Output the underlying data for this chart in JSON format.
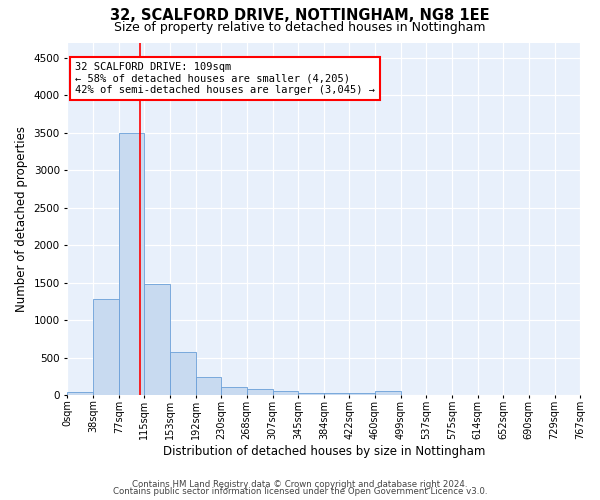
{
  "title1": "32, SCALFORD DRIVE, NOTTINGHAM, NG8 1EE",
  "title2": "Size of property relative to detached houses in Nottingham",
  "xlabel": "Distribution of detached houses by size in Nottingham",
  "ylabel": "Number of detached properties",
  "bin_edges": [
    0,
    38,
    77,
    115,
    153,
    192,
    230,
    268,
    307,
    345,
    384,
    422,
    460,
    499,
    537,
    575,
    614,
    652,
    690,
    729,
    767
  ],
  "bar_heights": [
    40,
    1280,
    3500,
    1480,
    580,
    245,
    115,
    80,
    55,
    35,
    25,
    30,
    55,
    0,
    0,
    0,
    0,
    0,
    0,
    0
  ],
  "bar_color": "#c8daf0",
  "bar_edge_color": "#6a9fd8",
  "property_size": 109,
  "vline_color": "red",
  "annotation_line1": "32 SCALFORD DRIVE: 109sqm",
  "annotation_line2": "← 58% of detached houses are smaller (4,205)",
  "annotation_line3": "42% of semi-detached houses are larger (3,045) →",
  "annotation_box_color": "white",
  "annotation_box_edge": "red",
  "ylim": [
    0,
    4700
  ],
  "yticks": [
    0,
    500,
    1000,
    1500,
    2000,
    2500,
    3000,
    3500,
    4000,
    4500
  ],
  "footnote1": "Contains HM Land Registry data © Crown copyright and database right 2024.",
  "footnote2": "Contains public sector information licensed under the Open Government Licence v3.0.",
  "background_color": "#e8f0fb",
  "grid_color": "#ffffff",
  "tick_label_fontsize": 7.0,
  "ylabel_fontsize": 8.5,
  "xlabel_fontsize": 8.5,
  "title1_fontsize": 10.5,
  "title2_fontsize": 9.0,
  "annotation_fontsize": 7.5,
  "footnote_fontsize": 6.2
}
